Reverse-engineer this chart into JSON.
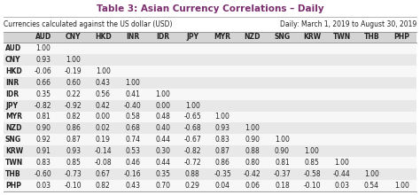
{
  "title": "Table 3: Asian Currency Correlations – Daily",
  "subtitle_left": "Currencies calculated against the US dollar (USD)",
  "subtitle_right": "Daily: March 1, 2019 to August 30, 2019",
  "currencies": [
    "AUD",
    "CNY",
    "HKD",
    "INR",
    "IDR",
    "JPY",
    "MYR",
    "NZD",
    "SNG",
    "KRW",
    "TWN",
    "THB",
    "PHP"
  ],
  "data": [
    [
      1.0,
      null,
      null,
      null,
      null,
      null,
      null,
      null,
      null,
      null,
      null,
      null,
      null
    ],
    [
      0.93,
      1.0,
      null,
      null,
      null,
      null,
      null,
      null,
      null,
      null,
      null,
      null,
      null
    ],
    [
      -0.06,
      -0.19,
      1.0,
      null,
      null,
      null,
      null,
      null,
      null,
      null,
      null,
      null,
      null
    ],
    [
      0.66,
      0.6,
      0.43,
      1.0,
      null,
      null,
      null,
      null,
      null,
      null,
      null,
      null,
      null
    ],
    [
      0.35,
      0.22,
      0.56,
      0.41,
      1.0,
      null,
      null,
      null,
      null,
      null,
      null,
      null,
      null
    ],
    [
      -0.82,
      -0.92,
      0.42,
      -0.4,
      0.0,
      1.0,
      null,
      null,
      null,
      null,
      null,
      null,
      null
    ],
    [
      0.81,
      0.82,
      0.0,
      0.58,
      0.48,
      -0.65,
      1.0,
      null,
      null,
      null,
      null,
      null,
      null
    ],
    [
      0.9,
      0.86,
      0.02,
      0.68,
      0.4,
      -0.68,
      0.93,
      1.0,
      null,
      null,
      null,
      null,
      null
    ],
    [
      0.92,
      0.87,
      0.19,
      0.74,
      0.44,
      -0.67,
      0.83,
      0.9,
      1.0,
      null,
      null,
      null,
      null
    ],
    [
      0.91,
      0.93,
      -0.14,
      0.53,
      0.3,
      -0.82,
      0.87,
      0.88,
      0.9,
      1.0,
      null,
      null,
      null
    ],
    [
      0.83,
      0.85,
      -0.08,
      0.46,
      0.44,
      -0.72,
      0.86,
      0.8,
      0.81,
      0.85,
      1.0,
      null,
      null
    ],
    [
      -0.6,
      -0.73,
      0.67,
      -0.16,
      0.35,
      0.88,
      -0.35,
      -0.42,
      -0.37,
      -0.58,
      -0.44,
      1.0,
      null
    ],
    [
      0.03,
      -0.1,
      0.82,
      0.43,
      0.7,
      0.29,
      0.04,
      0.06,
      0.18,
      -0.1,
      0.03,
      0.54,
      1.0
    ]
  ],
  "title_color": "#7B2D6E",
  "header_bg_color": "#D4D4D4",
  "row_alt_color": "#E8E8E8",
  "row_normal_color": "#F7F7F7",
  "border_color": "#999999",
  "title_fontsize": 7.5,
  "subtitle_fontsize": 5.5,
  "header_fontsize": 5.5,
  "data_fontsize": 5.5,
  "fig_width": 4.74,
  "fig_height": 2.2,
  "dpi": 100
}
